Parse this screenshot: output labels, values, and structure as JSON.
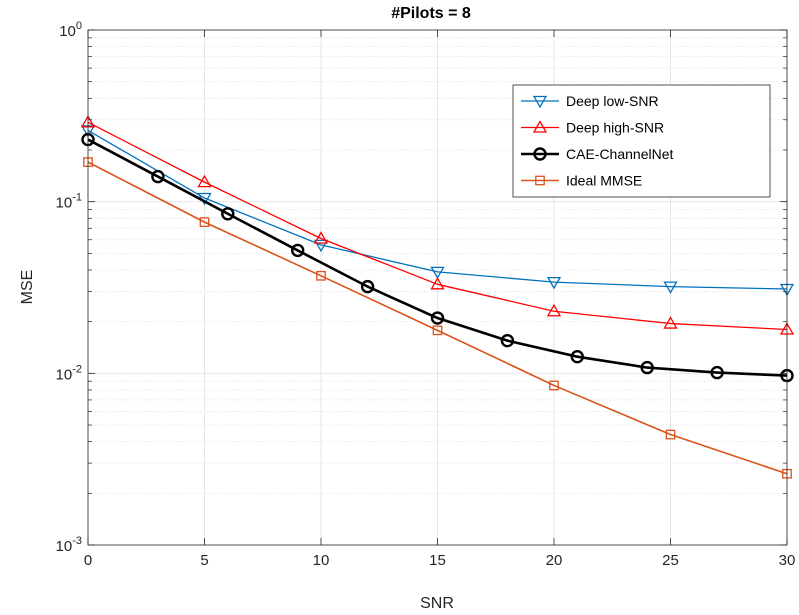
{
  "chart_data": {
    "type": "line",
    "title": "#Pilots = 8",
    "xlabel": "SNR",
    "ylabel": "MSE",
    "xlim": [
      0,
      30
    ],
    "ylim": [
      0.001,
      1
    ],
    "yscale": "log",
    "grid": true,
    "legend_position": "top-right",
    "x_ticks": [
      {
        "value": 0,
        "label": "0"
      },
      {
        "value": 5,
        "label": "5"
      },
      {
        "value": 10,
        "label": "10"
      },
      {
        "value": 15,
        "label": "15"
      },
      {
        "value": 20,
        "label": "20"
      },
      {
        "value": 25,
        "label": "25"
      },
      {
        "value": 30,
        "label": "30"
      }
    ],
    "y_ticks": [
      {
        "value": 0.001,
        "base": "10",
        "exp": "-3"
      },
      {
        "value": 0.01,
        "base": "10",
        "exp": "-2"
      },
      {
        "value": 0.1,
        "base": "10",
        "exp": "-1"
      },
      {
        "value": 1,
        "base": "10",
        "exp": "0"
      }
    ],
    "series": [
      {
        "name": "Deep low-SNR",
        "color": "#0072BD",
        "marker": "triangle-down",
        "line_width": 1.3,
        "x": [
          0,
          5,
          10,
          15,
          20,
          25,
          30
        ],
        "y": [
          0.26,
          0.105,
          0.056,
          0.039,
          0.034,
          0.032,
          0.031
        ]
      },
      {
        "name": "Deep high-SNR",
        "color": "#FF0000",
        "marker": "triangle-up",
        "line_width": 1.3,
        "x": [
          0,
          5,
          10,
          15,
          20,
          25,
          30
        ],
        "y": [
          0.29,
          0.13,
          0.061,
          0.033,
          0.023,
          0.0195,
          0.018
        ]
      },
      {
        "name": "CAE-ChannelNet",
        "color": "#000000",
        "marker": "circle",
        "line_width": 2.6,
        "x": [
          0,
          3,
          6,
          9,
          12,
          15,
          18,
          21,
          24,
          27,
          30
        ],
        "y": [
          0.23,
          0.14,
          0.085,
          0.052,
          0.032,
          0.021,
          0.0155,
          0.0125,
          0.0108,
          0.0101,
          0.0097
        ]
      },
      {
        "name": "Ideal MMSE",
        "color": "#D95319",
        "marker": "square",
        "line_width": 1.6,
        "x": [
          0,
          5,
          10,
          15,
          20,
          25,
          30
        ],
        "y": [
          0.17,
          0.076,
          0.037,
          0.0178,
          0.0085,
          0.0044,
          0.0026
        ]
      }
    ]
  }
}
